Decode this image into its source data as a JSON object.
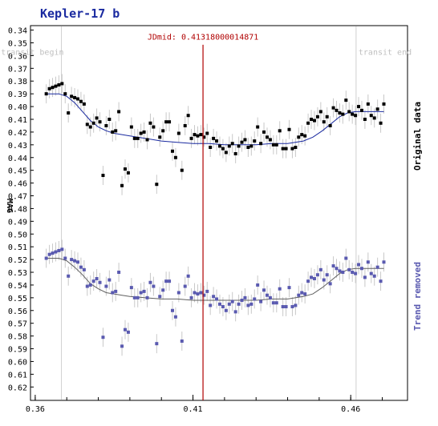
{
  "chart_data": {
    "type": "scatter",
    "title": "Kepler-17 b",
    "ylabel": "MAG",
    "x_ticks": [
      "0.36",
      "0.41",
      "0.46"
    ],
    "y_ticks": [
      "0.34",
      "0.35",
      "0.36",
      "0.37",
      "0.38",
      "0.39",
      "0.40",
      "0.41",
      "0.42",
      "0.43",
      "0.44",
      "0.45",
      "0.46",
      "0.47",
      "0.48",
      "0.49",
      "0.50",
      "0.51",
      "0.52",
      "0.53",
      "0.54",
      "0.55",
      "0.56",
      "0.57",
      "0.58",
      "0.59",
      "0.60",
      "0.61",
      "0.62"
    ],
    "xlim": [
      0.3585,
      0.478
    ],
    "ylim": [
      0.3365,
      0.6305
    ],
    "y_inverted": true,
    "jdmid_label": "JDmid: 0.41318000014871",
    "jdmid": 0.41318,
    "transit_begin_label": "transit begin",
    "transit_end_label": "transit end",
    "transit_begin": 0.3683,
    "transit_end": 0.4617,
    "side_labels": [
      "Original data",
      "Trend removed"
    ],
    "colors": {
      "original": "#000000",
      "trend": "#5a5ab0",
      "fit_original": "#1a2aa0",
      "fit_trend": "#606060",
      "jd_line": "#b00000",
      "errbar": "#c8c8c8"
    },
    "series": [
      {
        "name": "Original data",
        "x": [
          0.3635,
          0.3645,
          0.3655,
          0.3665,
          0.3675,
          0.3685,
          0.3695,
          0.3705,
          0.3715,
          0.3725,
          0.3735,
          0.3745,
          0.3755,
          0.3765,
          0.3775,
          0.3785,
          0.3795,
          0.3805,
          0.3815,
          0.3825,
          0.3835,
          0.3845,
          0.3855,
          0.3865,
          0.3875,
          0.3885,
          0.3895,
          0.3905,
          0.3915,
          0.3925,
          0.3935,
          0.3945,
          0.3955,
          0.3965,
          0.3975,
          0.3985,
          0.3995,
          0.4005,
          0.4015,
          0.4025,
          0.4035,
          0.4045,
          0.4055,
          0.4065,
          0.4075,
          0.4085,
          0.4095,
          0.4105,
          0.4115,
          0.4125,
          0.4135,
          0.4145,
          0.4155,
          0.4165,
          0.4175,
          0.4185,
          0.4195,
          0.4205,
          0.4215,
          0.4225,
          0.4235,
          0.4245,
          0.4255,
          0.4265,
          0.4275,
          0.4285,
          0.4295,
          0.4305,
          0.4315,
          0.4325,
          0.4335,
          0.4345,
          0.4355,
          0.4365,
          0.4375,
          0.4385,
          0.4395,
          0.4405,
          0.4415,
          0.4425,
          0.4435,
          0.4445,
          0.4455,
          0.4465,
          0.4475,
          0.4485,
          0.4495,
          0.4505,
          0.4515,
          0.4525,
          0.4535,
          0.4545,
          0.4555,
          0.4565,
          0.4575,
          0.4585,
          0.4595,
          0.4605,
          0.4615,
          0.4625,
          0.4635,
          0.4645,
          0.4655,
          0.4665,
          0.4675,
          0.4685,
          0.4695,
          0.4705
        ],
        "y": [
          0.39,
          0.386,
          0.385,
          0.384,
          0.383,
          0.382,
          0.39,
          0.405,
          0.392,
          0.393,
          0.394,
          0.396,
          0.398,
          0.414,
          0.416,
          0.413,
          0.409,
          0.412,
          0.454,
          0.415,
          0.41,
          0.42,
          0.419,
          0.404,
          0.462,
          0.449,
          0.452,
          0.416,
          0.425,
          0.425,
          0.421,
          0.42,
          0.426,
          0.413,
          0.416,
          0.461,
          0.424,
          0.419,
          0.412,
          0.412,
          0.435,
          0.44,
          0.421,
          0.45,
          0.415,
          0.407,
          0.425,
          0.422,
          0.423,
          0.422,
          0.424,
          0.421,
          0.432,
          0.425,
          0.427,
          0.431,
          0.433,
          0.436,
          0.431,
          0.429,
          0.437,
          0.431,
          0.428,
          0.426,
          0.432,
          0.431,
          0.427,
          0.416,
          0.429,
          0.42,
          0.424,
          0.426,
          0.43,
          0.43,
          0.419,
          0.433,
          0.433,
          0.418,
          0.433,
          0.432,
          0.424,
          0.422,
          0.423,
          0.413,
          0.41,
          0.411,
          0.408,
          0.404,
          0.412,
          0.408,
          0.415,
          0.401,
          0.403,
          0.405,
          0.406,
          0.395,
          0.404,
          0.406,
          0.407,
          0.4,
          0.403,
          0.41,
          0.398,
          0.407,
          0.409,
          0.402,
          0.413,
          0.398
        ],
        "fit_x": [
          0.3635,
          0.3675,
          0.37,
          0.3725,
          0.375,
          0.3775,
          0.38,
          0.3825,
          0.385,
          0.3875,
          0.39,
          0.395,
          0.4,
          0.405,
          0.41,
          0.415,
          0.42,
          0.425,
          0.43,
          0.435,
          0.44,
          0.445,
          0.448,
          0.451,
          0.454,
          0.4565,
          0.459,
          0.4615,
          0.464,
          0.467,
          0.4705
        ],
        "fit_y": [
          0.39,
          0.39,
          0.392,
          0.397,
          0.404,
          0.411,
          0.416,
          0.419,
          0.421,
          0.422,
          0.423,
          0.425,
          0.427,
          0.428,
          0.429,
          0.429,
          0.43,
          0.43,
          0.43,
          0.429,
          0.429,
          0.427,
          0.424,
          0.419,
          0.413,
          0.408,
          0.405,
          0.404,
          0.404,
          0.404,
          0.404
        ]
      },
      {
        "name": "Trend removed",
        "x": [
          0.3635,
          0.3645,
          0.3655,
          0.3665,
          0.3675,
          0.3685,
          0.3695,
          0.3705,
          0.3715,
          0.3725,
          0.3735,
          0.3745,
          0.3755,
          0.3765,
          0.3775,
          0.3785,
          0.3795,
          0.3805,
          0.3815,
          0.3825,
          0.3835,
          0.3845,
          0.3855,
          0.3865,
          0.3875,
          0.3885,
          0.3895,
          0.3905,
          0.3915,
          0.3925,
          0.3935,
          0.3945,
          0.3955,
          0.3965,
          0.3975,
          0.3985,
          0.3995,
          0.4005,
          0.4015,
          0.4025,
          0.4035,
          0.4045,
          0.4055,
          0.4065,
          0.4075,
          0.4085,
          0.4095,
          0.4105,
          0.4115,
          0.4125,
          0.4135,
          0.4145,
          0.4155,
          0.4165,
          0.4175,
          0.4185,
          0.4195,
          0.4205,
          0.4215,
          0.4225,
          0.4235,
          0.4245,
          0.4255,
          0.4265,
          0.4275,
          0.4285,
          0.4295,
          0.4305,
          0.4315,
          0.4325,
          0.4335,
          0.4345,
          0.4355,
          0.4365,
          0.4375,
          0.4385,
          0.4395,
          0.4405,
          0.4415,
          0.4425,
          0.4435,
          0.4445,
          0.4455,
          0.4465,
          0.4475,
          0.4485,
          0.4495,
          0.4505,
          0.4515,
          0.4525,
          0.4535,
          0.4545,
          0.4555,
          0.4565,
          0.4575,
          0.4585,
          0.4595,
          0.4605,
          0.4615,
          0.4625,
          0.4635,
          0.4645,
          0.4655,
          0.4665,
          0.4675,
          0.4685,
          0.4695,
          0.4705
        ],
        "y": [
          0.519,
          0.516,
          0.515,
          0.514,
          0.513,
          0.512,
          0.519,
          0.533,
          0.52,
          0.521,
          0.522,
          0.526,
          0.528,
          0.541,
          0.54,
          0.537,
          0.535,
          0.538,
          0.581,
          0.541,
          0.536,
          0.546,
          0.545,
          0.53,
          0.588,
          0.575,
          0.577,
          0.542,
          0.55,
          0.55,
          0.546,
          0.545,
          0.55,
          0.538,
          0.541,
          0.586,
          0.549,
          0.544,
          0.537,
          0.537,
          0.56,
          0.565,
          0.546,
          0.584,
          0.541,
          0.533,
          0.55,
          0.546,
          0.547,
          0.546,
          0.548,
          0.545,
          0.556,
          0.549,
          0.551,
          0.555,
          0.557,
          0.56,
          0.555,
          0.553,
          0.561,
          0.555,
          0.552,
          0.55,
          0.556,
          0.555,
          0.551,
          0.54,
          0.553,
          0.544,
          0.548,
          0.55,
          0.554,
          0.554,
          0.543,
          0.557,
          0.557,
          0.542,
          0.557,
          0.556,
          0.548,
          0.546,
          0.547,
          0.537,
          0.534,
          0.535,
          0.532,
          0.528,
          0.536,
          0.532,
          0.539,
          0.525,
          0.527,
          0.529,
          0.53,
          0.519,
          0.528,
          0.53,
          0.531,
          0.524,
          0.527,
          0.534,
          0.522,
          0.531,
          0.533,
          0.526,
          0.537,
          0.522
        ],
        "fit_x": [
          0.3635,
          0.3675,
          0.37,
          0.3725,
          0.375,
          0.3775,
          0.38,
          0.3825,
          0.385,
          0.3875,
          0.39,
          0.395,
          0.4,
          0.405,
          0.41,
          0.415,
          0.42,
          0.425,
          0.43,
          0.435,
          0.44,
          0.445,
          0.448,
          0.451,
          0.454,
          0.4565,
          0.459,
          0.4615,
          0.464,
          0.467,
          0.4705
        ],
        "fit_y": [
          0.519,
          0.519,
          0.521,
          0.526,
          0.532,
          0.539,
          0.543,
          0.546,
          0.547,
          0.548,
          0.549,
          0.55,
          0.551,
          0.551,
          0.552,
          0.552,
          0.552,
          0.552,
          0.552,
          0.551,
          0.551,
          0.549,
          0.547,
          0.542,
          0.536,
          0.531,
          0.528,
          0.527,
          0.527,
          0.527,
          0.527
        ]
      }
    ]
  }
}
